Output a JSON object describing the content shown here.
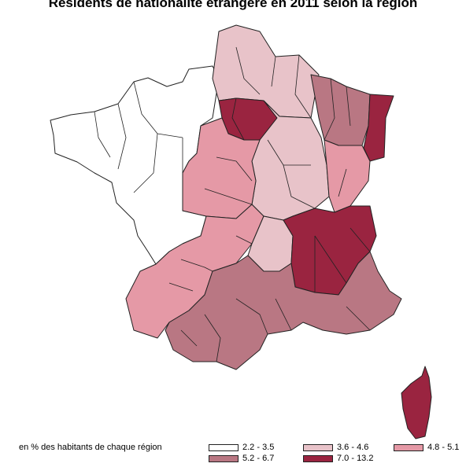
{
  "title": "Résidents de nationalité étrangère en 2011 selon la région",
  "legend": {
    "caption": "en % des habitants de chaque région",
    "classes": [
      {
        "label": "2.2 - 3.5",
        "color": "#ffffff"
      },
      {
        "label": "3.6 - 4.6",
        "color": "#e8c3c9"
      },
      {
        "label": "4.8 - 5.1",
        "color": "#e599a6"
      },
      {
        "label": "5.2 - 6.7",
        "color": "#b97783"
      },
      {
        "label": "7.0 - 13.2",
        "color": "#9a2440"
      }
    ]
  },
  "colors": {
    "border": "#222222",
    "background": "#ffffff"
  }
}
